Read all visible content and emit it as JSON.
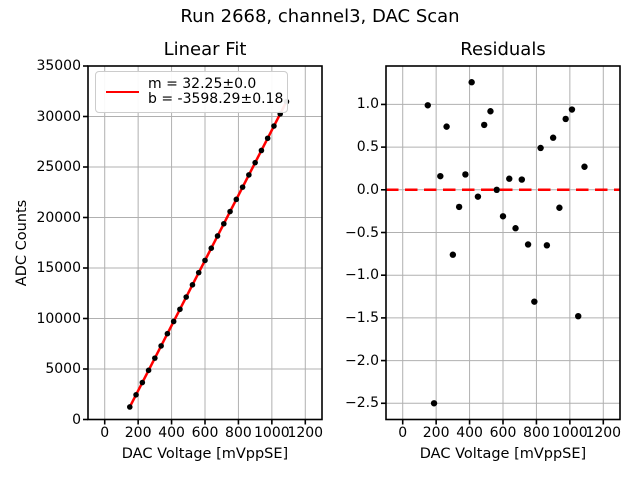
{
  "suptitle": "Run 2668, channel3, DAC Scan",
  "colors": {
    "fit_line": "#ff0000",
    "zero_line": "#ff0000",
    "marker": "#000000",
    "grid": "#b0b0b0",
    "axes": "#000000",
    "legend_border": "#cccccc",
    "background": "#ffffff"
  },
  "chart_data": [
    {
      "type": "scatter",
      "title": "Linear Fit",
      "xlabel": "DAC Voltage [mVppSE]",
      "ylabel": "ADC Counts",
      "xlim": [
        -100,
        1300
      ],
      "ylim": [
        0,
        35000
      ],
      "grid": true,
      "xticks": [
        0,
        200,
        400,
        600,
        800,
        1000,
        1200
      ],
      "xtick_labels": [
        "0",
        "200",
        "400",
        "600",
        "800",
        "1000",
        "1200"
      ],
      "yticks": [
        0,
        5000,
        10000,
        15000,
        20000,
        25000,
        30000,
        35000
      ],
      "ytick_labels": [
        "0",
        "5000",
        "10000",
        "15000",
        "20000",
        "25000",
        "30000",
        "35000"
      ],
      "legend": {
        "position": "upper left",
        "lines": [
          "m = 32.25±0.0",
          "b = -3598.29±0.18"
        ]
      },
      "fit": {
        "slope": 32.25,
        "slope_err": 0.0,
        "intercept": -3598.29,
        "intercept_err": 0.18
      },
      "x": [
        150,
        187.5,
        225,
        262.5,
        300,
        337.5,
        375,
        412.5,
        450,
        487.5,
        525,
        562.5,
        600,
        637.5,
        675,
        712.5,
        750,
        787.5,
        825,
        862.5,
        900,
        937.5,
        975,
        1012.5,
        1050,
        1087.5
      ],
      "y": [
        1240.2,
        2446.1,
        3658.1,
        4868.1,
        6076.0,
        7285.9,
        8495.6,
        9706.1,
        10914.1,
        12124.3,
        13333.9,
        14542.3,
        15751.4,
        16961.2,
        18170.0,
        19380.0,
        20588.6,
        21797.3,
        23008.5,
        24216.7,
        25427.3,
        26635.9,
        27846.3,
        29055.8,
        30262.7,
        31473.9
      ]
    },
    {
      "type": "scatter",
      "title": "Residuals",
      "xlabel": "DAC Voltage [mVppSE]",
      "ylabel": "",
      "xlim": [
        -100,
        1300
      ],
      "ylim": [
        -2.69,
        1.45
      ],
      "grid": true,
      "xticks": [
        0,
        200,
        400,
        600,
        800,
        1000,
        1200
      ],
      "xtick_labels": [
        "0",
        "200",
        "400",
        "600",
        "800",
        "1000",
        "1200"
      ],
      "yticks": [
        1.0,
        0.5,
        0.0,
        -0.5,
        -1.0,
        -1.5,
        -2.0,
        -2.5
      ],
      "ytick_labels": [
        "1.0",
        "0.5",
        "0.0",
        "−0.5",
        "−1.0",
        "−1.5",
        "−2.0",
        "−2.5"
      ],
      "zero_line": {
        "y": 0,
        "style": "dashed",
        "color": "#ff0000"
      },
      "x": [
        150,
        187.5,
        225,
        262.5,
        300,
        337.5,
        375,
        412.5,
        450,
        487.5,
        525,
        562.5,
        600,
        637.5,
        675,
        712.5,
        750,
        787.5,
        825,
        862.5,
        900,
        937.5,
        975,
        1012.5,
        1050,
        1087.5
      ],
      "y": [
        0.99,
        -2.5,
        0.16,
        0.74,
        -0.76,
        -0.2,
        0.18,
        1.26,
        -0.08,
        0.76,
        0.92,
        0.0,
        -0.31,
        0.13,
        -0.45,
        0.12,
        -0.64,
        -1.31,
        0.49,
        -0.65,
        0.61,
        -0.21,
        0.83,
        0.94,
        -1.48,
        0.27
      ]
    }
  ]
}
